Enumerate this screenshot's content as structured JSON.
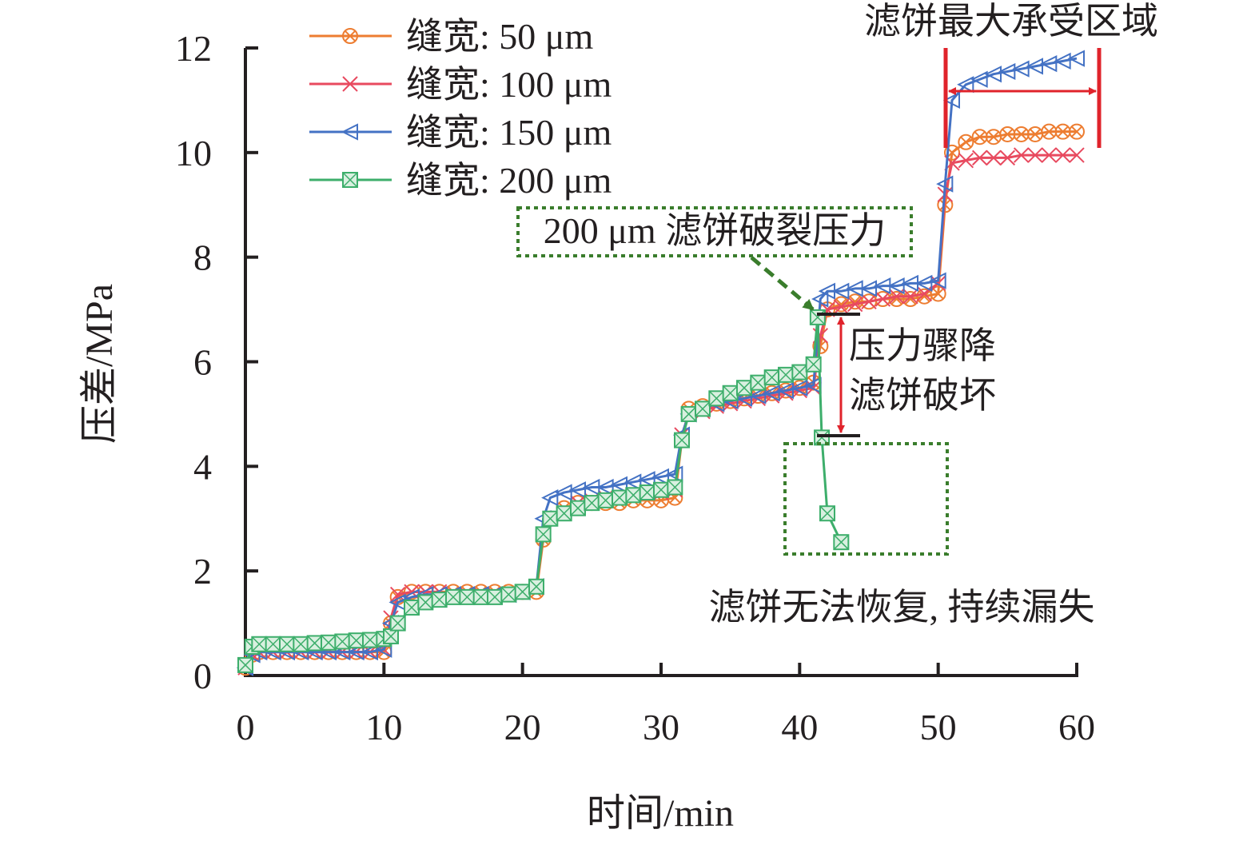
{
  "chart_data": {
    "type": "line",
    "xlabel": "时间/min",
    "ylabel": "压差/MPa",
    "xlim": [
      0,
      60
    ],
    "ylim": [
      0,
      12
    ],
    "x_ticks": [
      0,
      10,
      20,
      30,
      40,
      50,
      60
    ],
    "y_ticks": [
      0,
      2,
      4,
      6,
      8,
      10,
      12
    ],
    "grid": false,
    "legend_position": "top-left",
    "series": [
      {
        "name": "缝宽: 50 μm",
        "color": "#ed7d31",
        "marker": "circle-x",
        "x": [
          0,
          0.5,
          1,
          2,
          3,
          4,
          5,
          6,
          7,
          8,
          9,
          10,
          10.5,
          11,
          12,
          13,
          14,
          15,
          16,
          17,
          18,
          19,
          20,
          21,
          21.5,
          22,
          23,
          24,
          25,
          26,
          27,
          28,
          29,
          30,
          31,
          31.5,
          32,
          33,
          34,
          35,
          36,
          37,
          38,
          39,
          40,
          41,
          41.5,
          42,
          43,
          44,
          45,
          46,
          47,
          48,
          49,
          50,
          50.5,
          51,
          52,
          53,
          54,
          55,
          56,
          57,
          58,
          59,
          60
        ],
        "y": [
          0.15,
          0.4,
          0.45,
          0.45,
          0.45,
          0.45,
          0.45,
          0.45,
          0.45,
          0.45,
          0.45,
          0.45,
          1.0,
          1.5,
          1.6,
          1.6,
          1.6,
          1.6,
          1.6,
          1.6,
          1.6,
          1.6,
          1.6,
          1.6,
          2.6,
          3.0,
          3.2,
          3.3,
          3.3,
          3.3,
          3.3,
          3.35,
          3.35,
          3.35,
          3.4,
          4.5,
          5.1,
          5.15,
          5.2,
          5.25,
          5.3,
          5.35,
          5.4,
          5.45,
          5.5,
          5.6,
          6.3,
          7.0,
          7.1,
          7.15,
          7.15,
          7.2,
          7.2,
          7.2,
          7.25,
          7.3,
          9.0,
          10.0,
          10.2,
          10.3,
          10.3,
          10.35,
          10.35,
          10.35,
          10.4,
          10.4,
          10.4
        ]
      },
      {
        "name": "缝宽: 100 μm",
        "color": "#e84a5f",
        "marker": "x",
        "x": [
          0,
          0.5,
          1,
          2,
          3,
          4,
          5,
          6,
          7,
          8,
          9,
          10,
          10.5,
          11,
          12,
          13,
          14,
          15,
          16,
          17,
          18,
          19,
          20,
          21,
          21.5,
          22,
          23,
          24,
          25,
          26,
          27,
          28,
          29,
          30,
          31,
          31.5,
          32,
          33,
          34,
          35,
          36,
          37,
          38,
          39,
          40,
          41,
          41.5,
          42,
          43,
          44,
          45,
          46,
          47,
          48,
          49,
          50,
          50.5,
          51,
          52,
          53,
          54,
          55,
          56,
          57,
          58,
          59,
          60
        ],
        "y": [
          0.15,
          0.4,
          0.45,
          0.45,
          0.45,
          0.45,
          0.45,
          0.45,
          0.45,
          0.45,
          0.45,
          0.5,
          1.1,
          1.55,
          1.6,
          1.6,
          1.6,
          1.55,
          1.55,
          1.55,
          1.55,
          1.55,
          1.6,
          1.7,
          2.7,
          3.0,
          3.1,
          3.3,
          3.35,
          3.4,
          3.4,
          3.45,
          3.5,
          3.5,
          3.55,
          4.6,
          5.0,
          5.05,
          5.15,
          5.2,
          5.25,
          5.3,
          5.35,
          5.4,
          5.45,
          5.5,
          6.5,
          7.0,
          7.05,
          7.1,
          7.15,
          7.2,
          7.25,
          7.25,
          7.3,
          7.5,
          9.2,
          9.8,
          9.85,
          9.9,
          9.9,
          9.9,
          9.95,
          9.95,
          9.95,
          9.95,
          9.95
        ]
      },
      {
        "name": "缝宽: 150 μm",
        "color": "#4472c4",
        "marker": "triangle-left",
        "x": [
          0,
          0.5,
          1,
          2,
          3,
          4,
          5,
          6,
          7,
          8,
          9,
          10,
          10.5,
          11,
          12,
          13,
          14,
          15,
          16,
          17,
          18,
          19,
          20,
          21,
          21.5,
          22,
          23,
          24,
          25,
          26,
          27,
          28,
          29,
          30,
          31,
          31.5,
          32,
          33,
          34,
          35,
          36,
          37,
          38,
          39,
          40,
          41,
          41.5,
          42,
          43,
          44,
          45,
          46,
          47,
          48,
          49,
          50,
          50.5,
          51,
          52,
          53,
          54,
          55,
          56,
          57,
          58,
          59,
          60
        ],
        "y": [
          0.15,
          0.4,
          0.45,
          0.45,
          0.45,
          0.45,
          0.45,
          0.45,
          0.45,
          0.45,
          0.45,
          0.5,
          1.0,
          1.4,
          1.5,
          1.55,
          1.55,
          1.55,
          1.55,
          1.55,
          1.55,
          1.55,
          1.6,
          1.7,
          3.0,
          3.4,
          3.5,
          3.55,
          3.6,
          3.6,
          3.65,
          3.7,
          3.75,
          3.8,
          3.85,
          4.6,
          5.0,
          5.1,
          5.2,
          5.25,
          5.3,
          5.35,
          5.4,
          5.45,
          5.5,
          5.55,
          7.2,
          7.35,
          7.35,
          7.4,
          7.4,
          7.45,
          7.45,
          7.5,
          7.5,
          7.55,
          9.4,
          11.0,
          11.3,
          11.4,
          11.5,
          11.55,
          11.6,
          11.65,
          11.7,
          11.75,
          11.8
        ]
      },
      {
        "name": "缝宽: 200 μm",
        "color": "#3dae6b",
        "marker": "square-x",
        "x": [
          0,
          0.5,
          1,
          2,
          3,
          4,
          5,
          6,
          7,
          8,
          9,
          10,
          10.5,
          11,
          12,
          13,
          14,
          15,
          16,
          17,
          18,
          19,
          20,
          21,
          21.5,
          22,
          23,
          24,
          25,
          26,
          27,
          28,
          29,
          30,
          31,
          31.5,
          32,
          33,
          34,
          35,
          36,
          37,
          38,
          39,
          40,
          41,
          41.3,
          41.6,
          42,
          43
        ],
        "y": [
          0.2,
          0.55,
          0.6,
          0.6,
          0.6,
          0.6,
          0.62,
          0.63,
          0.65,
          0.67,
          0.68,
          0.7,
          0.75,
          1.0,
          1.3,
          1.4,
          1.45,
          1.5,
          1.5,
          1.5,
          1.5,
          1.55,
          1.6,
          1.7,
          2.7,
          3.0,
          3.1,
          3.2,
          3.3,
          3.35,
          3.4,
          3.45,
          3.5,
          3.55,
          3.6,
          4.5,
          5.0,
          5.1,
          5.3,
          5.4,
          5.5,
          5.6,
          5.7,
          5.75,
          5.8,
          5.95,
          6.85,
          4.55,
          3.1,
          2.55
        ]
      }
    ],
    "annotations": {
      "max_zone": "滤饼最大承受区域",
      "break_pressure": "200 μm 滤饼破裂压力",
      "drop_line1": "压力骤降",
      "drop_line2": "滤饼破坏",
      "no_recovery": "滤饼无法恢复, 持续漏失"
    }
  }
}
